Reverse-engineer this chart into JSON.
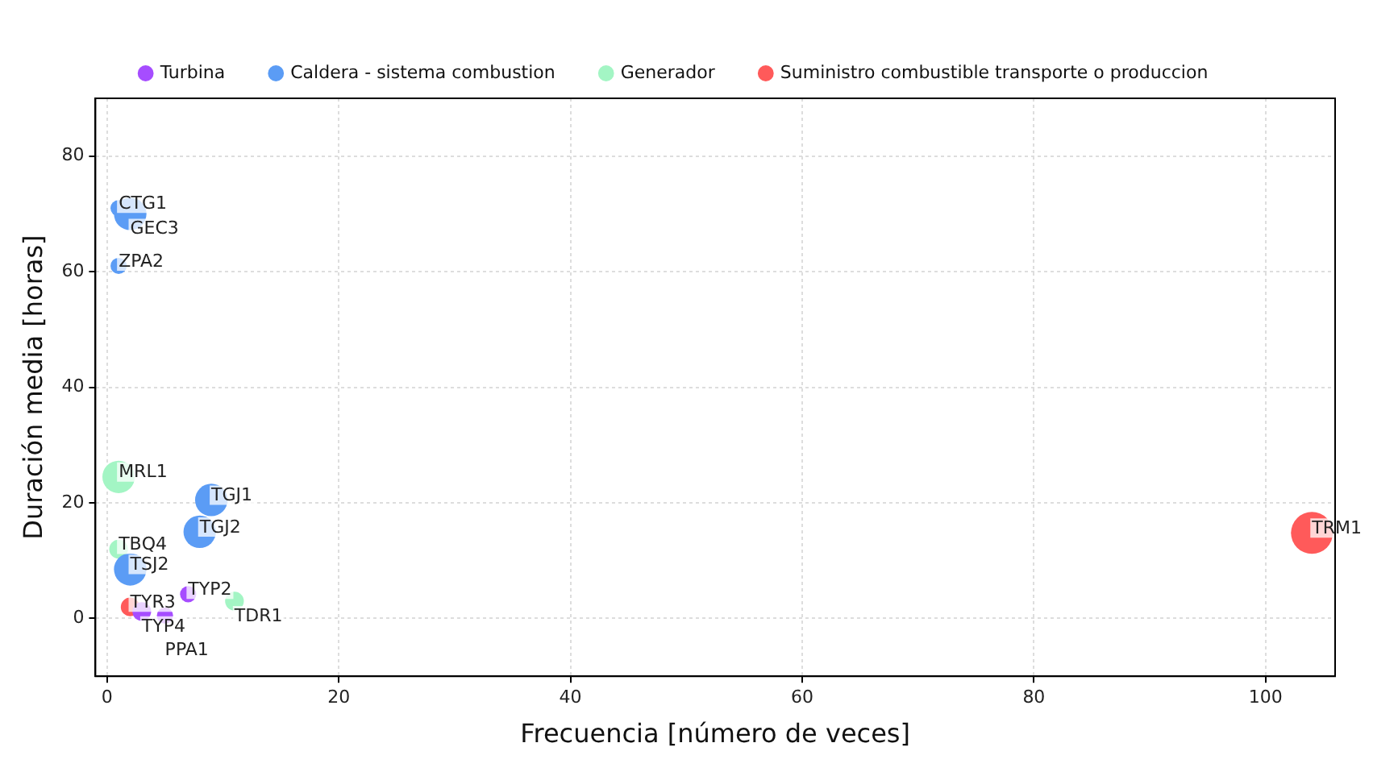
{
  "chart_data": {
    "type": "bubble",
    "xlabel": "Frecuencia [número de veces]",
    "ylabel": "Duración media [horas]",
    "xlim": [
      -1,
      106
    ],
    "ylim": [
      -10,
      90
    ],
    "xticks": [
      0,
      20,
      40,
      60,
      80,
      100
    ],
    "yticks": [
      0,
      20,
      40,
      60,
      80
    ],
    "grid": true,
    "legend": "top",
    "series": [
      {
        "name": "Turbina",
        "color": "#a64dff",
        "x": [
          7,
          3,
          5
        ],
        "values": [
          4.2,
          1.2,
          0.5
        ],
        "sizes": [
          0.15,
          0.2,
          0.15
        ]
      },
      {
        "name": "Caldera - sistema combustion",
        "color": "#5b9cf5",
        "x": [
          1,
          2,
          1,
          9,
          8,
          2
        ],
        "values": [
          71,
          70,
          61,
          20.5,
          15,
          8.5
        ],
        "sizes": [
          0.15,
          0.6,
          0.15,
          0.6,
          0.6,
          0.6
        ]
      },
      {
        "name": "Generador",
        "color": "#a3f5c4",
        "x": [
          1,
          1,
          11
        ],
        "values": [
          24.5,
          12,
          3
        ],
        "sizes": [
          0.6,
          0.2,
          0.2
        ]
      },
      {
        "name": "Suministro combustible transporte o produccion",
        "color": "#ff5a5a",
        "x": [
          104,
          2
        ],
        "values": [
          14.8,
          2
        ],
        "sizes": [
          1,
          0.2
        ]
      }
    ],
    "annotations": [
      {
        "text": "TYP2",
        "x": 7,
        "y": 4.2
      },
      {
        "text": "TYP4",
        "x": 3,
        "y": 1.2
      },
      {
        "text": "PPA1",
        "x": 5,
        "y": 0.5
      },
      {
        "text": "CTG1",
        "x": 1,
        "y": 71
      },
      {
        "text": "GEC3",
        "x": 2,
        "y": 70
      },
      {
        "text": "ZPA2",
        "x": 1,
        "y": 61
      },
      {
        "text": "TGJ1",
        "x": 9,
        "y": 20.5
      },
      {
        "text": "TGJ2",
        "x": 8,
        "y": 15
      },
      {
        "text": "TSJ2",
        "x": 2,
        "y": 8.5
      },
      {
        "text": "MRL1",
        "x": 1,
        "y": 24.5
      },
      {
        "text": "TBQ4",
        "x": 1,
        "y": 12
      },
      {
        "text": "TDR1",
        "x": 11,
        "y": 3
      },
      {
        "text": "TRM1",
        "x": 104,
        "y": 14.8
      },
      {
        "text": "TYR3",
        "x": 2,
        "y": 2
      }
    ]
  }
}
